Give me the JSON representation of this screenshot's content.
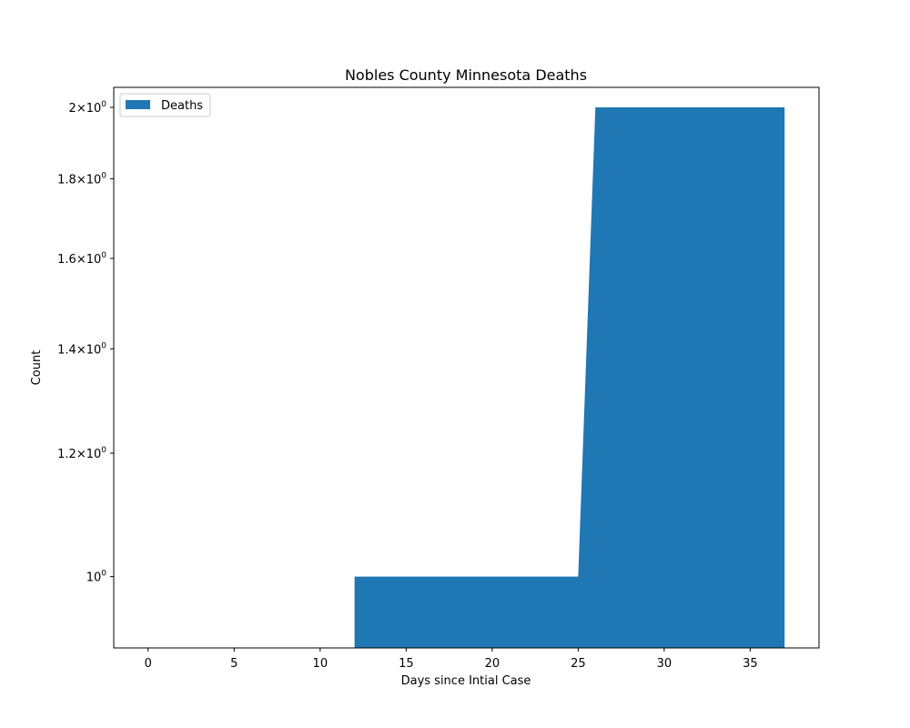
{
  "chart_data": {
    "type": "area",
    "title": "Nobles County Minnesota Deaths",
    "xlabel": "Days since Intial Case",
    "ylabel": "Count",
    "y_scale": "log",
    "xlim": [
      -2,
      39
    ],
    "ylim": [
      0.9,
      2.06
    ],
    "x_ticks": [
      0,
      5,
      10,
      15,
      20,
      25,
      30,
      35
    ],
    "y_ticks": [
      {
        "value": 1.0,
        "mantissa": "",
        "label": "10"
      },
      {
        "value": 1.2,
        "mantissa": "1.2",
        "label": "10"
      },
      {
        "value": 1.4,
        "mantissa": "1.4",
        "label": "10"
      },
      {
        "value": 1.6,
        "mantissa": "1.6",
        "label": "10"
      },
      {
        "value": 1.8,
        "mantissa": "1.8",
        "label": "10"
      },
      {
        "value": 2.0,
        "mantissa": "2",
        "label": "10"
      }
    ],
    "y_tick_exponent": "0",
    "y_tick_times": "×",
    "legend": {
      "position": "top-left"
    },
    "grid": false,
    "series": [
      {
        "name": "Deaths",
        "color": "#1f77b4",
        "x": [
          12,
          13,
          14,
          15,
          16,
          17,
          18,
          19,
          20,
          21,
          22,
          23,
          24,
          25,
          26,
          27,
          28,
          29,
          30,
          31,
          32,
          33,
          34,
          35,
          36,
          37
        ],
        "y": [
          1,
          1,
          1,
          1,
          1,
          1,
          1,
          1,
          1,
          1,
          1,
          1,
          1,
          1,
          2,
          2,
          2,
          2,
          2,
          2,
          2,
          2,
          2,
          2,
          2,
          2
        ]
      }
    ]
  }
}
